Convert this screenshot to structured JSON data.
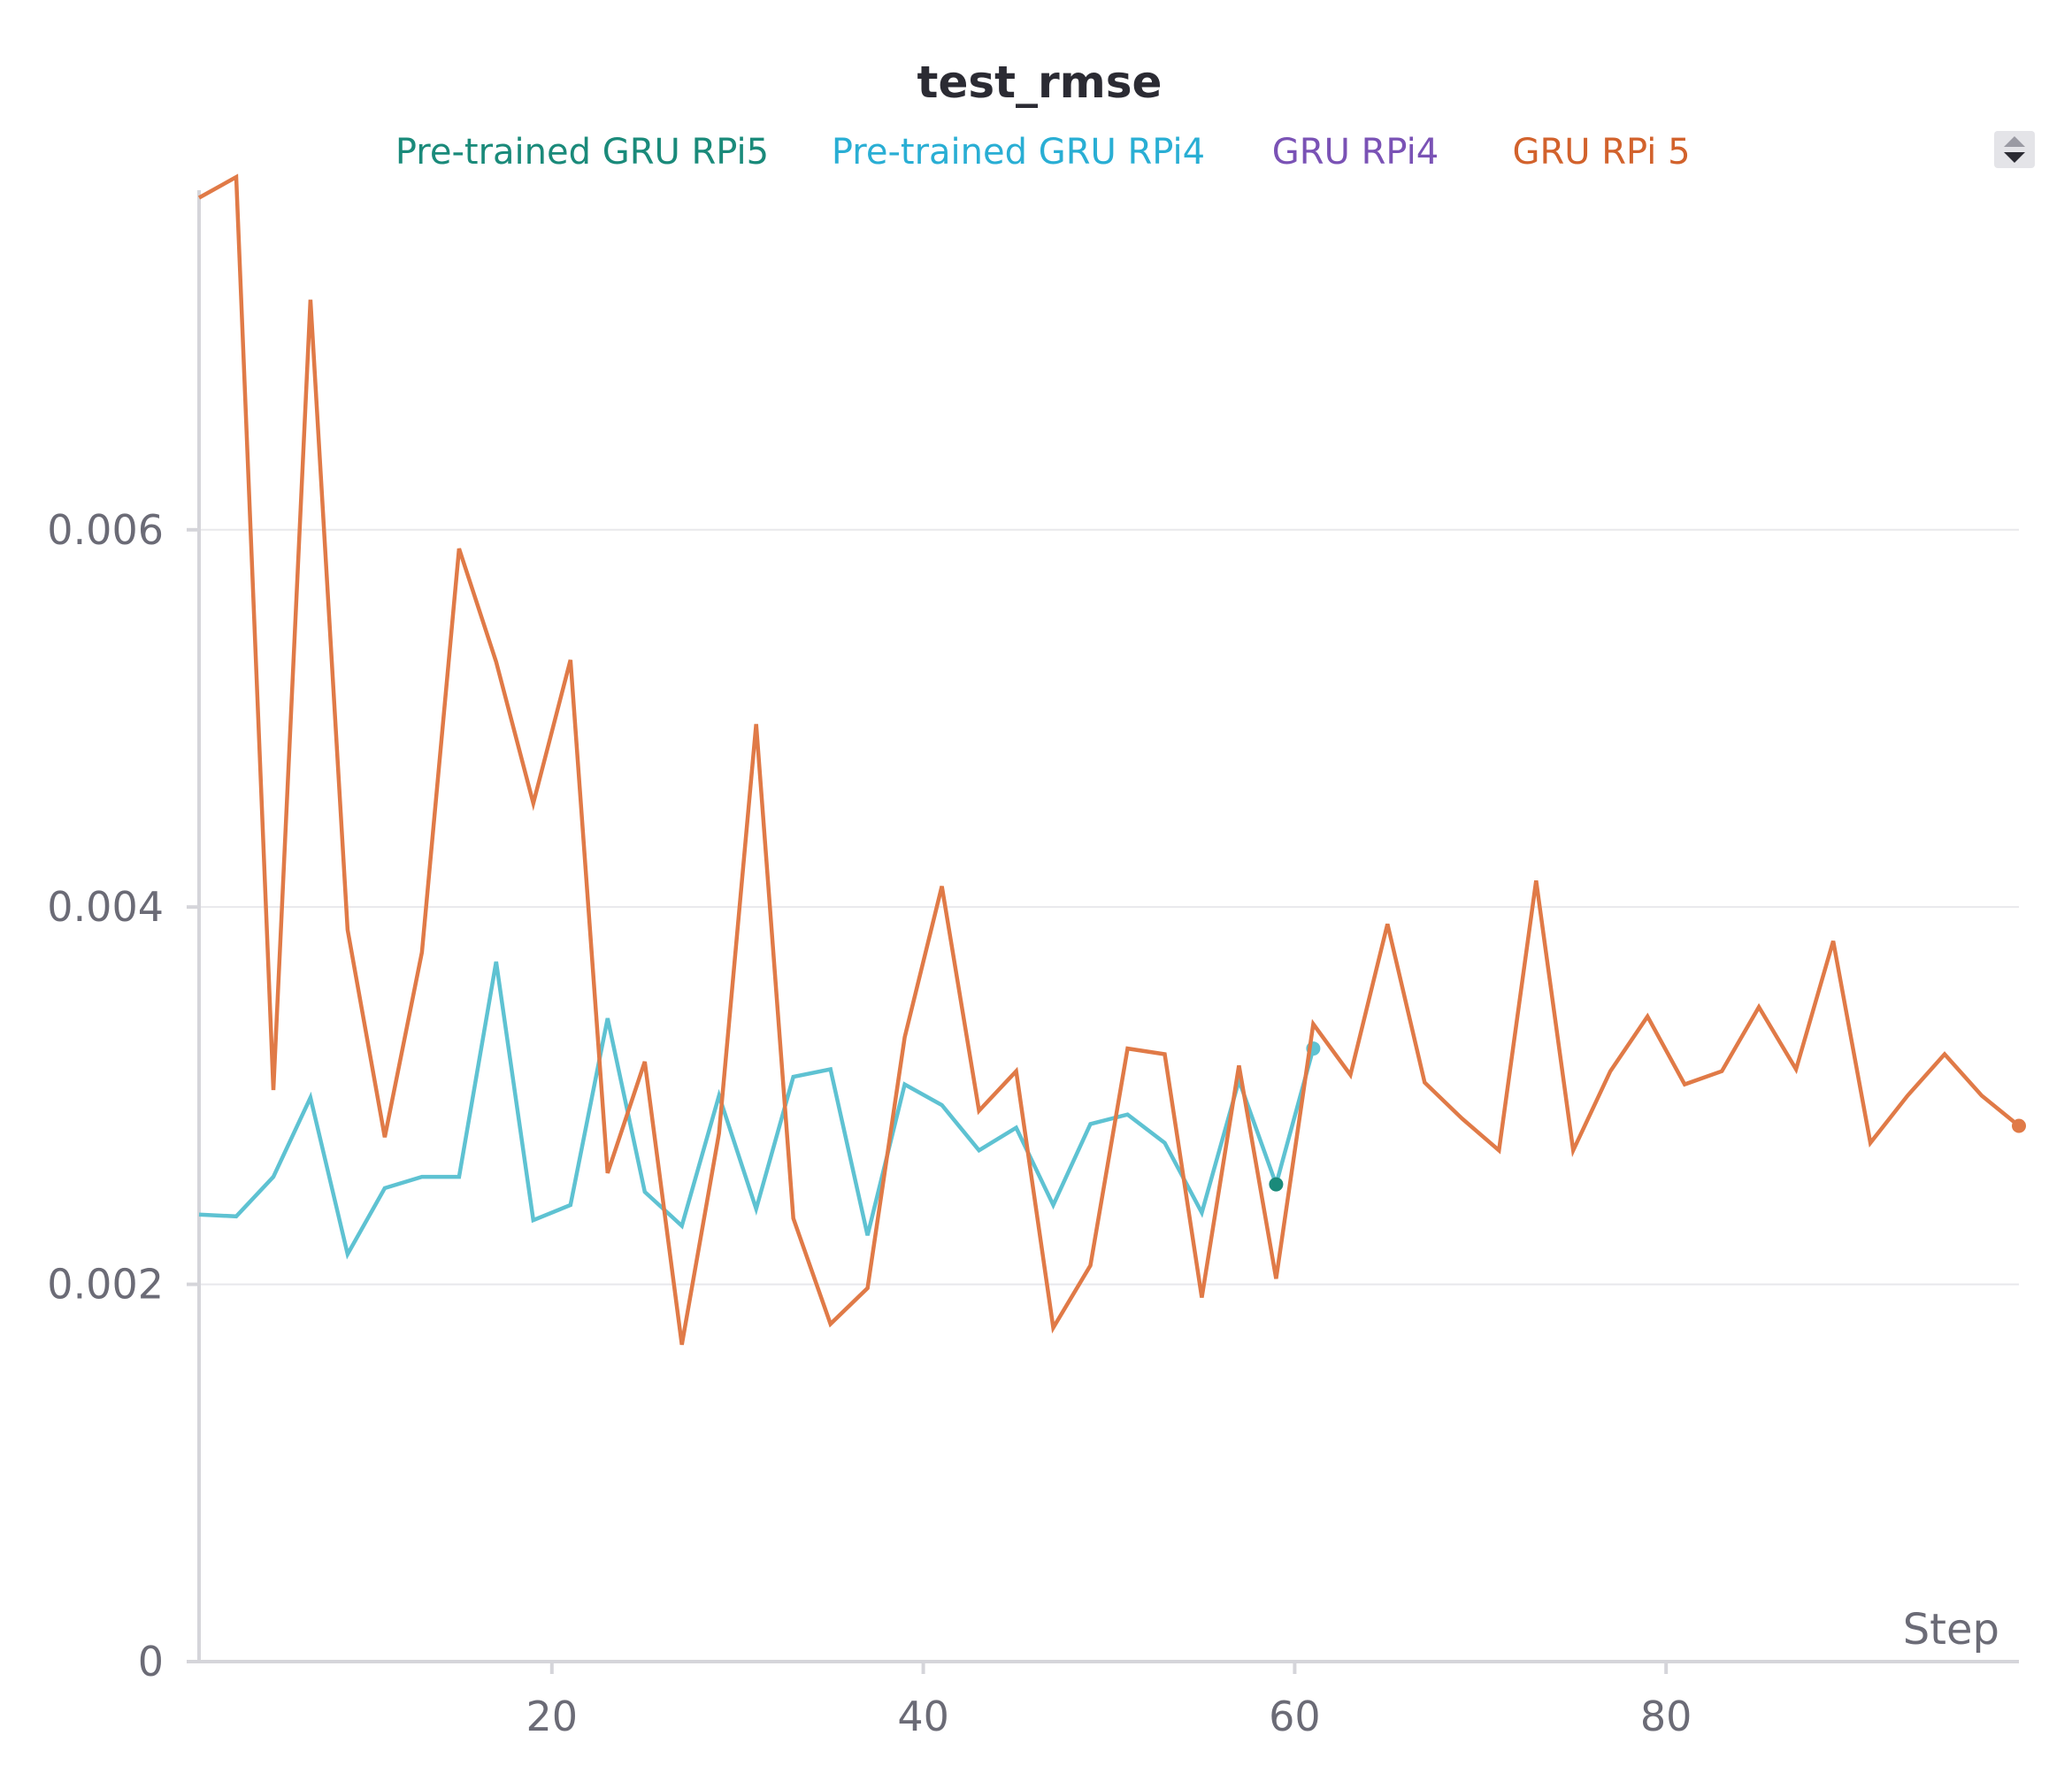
{
  "chart_data": {
    "type": "line",
    "title": "test_rmse",
    "xlabel": "Step",
    "ylabel": "",
    "xlim": [
      1,
      99
    ],
    "ylim": [
      0,
      0.0078
    ],
    "xticks": [
      20,
      40,
      60,
      80
    ],
    "yticks": [
      0,
      0.002,
      0.004,
      0.006
    ],
    "ytick_labels": [
      "0",
      "0.002",
      "0.004",
      "0.006"
    ],
    "grid": true,
    "legend_position": "top",
    "series": [
      {
        "name": "Pre-trained GRU RPi5",
        "color": "#1a8a7a",
        "label_color": "#1a8a7a",
        "x": [
          59
        ],
        "values": [
          0.00253
        ],
        "end_marker": true
      },
      {
        "name": "Pre-trained GRU RPi4",
        "color": "#5ec2d2",
        "label_color": "#29aed4",
        "x": [
          1,
          3,
          5,
          7,
          9,
          11,
          13,
          15,
          17,
          19,
          21,
          23,
          25,
          27,
          29,
          31,
          33,
          35,
          37,
          39,
          41,
          43,
          45,
          47,
          49,
          51,
          53,
          55,
          57,
          59,
          61
        ],
        "values": [
          0.00237,
          0.00236,
          0.00257,
          0.00299,
          0.00216,
          0.00251,
          0.00257,
          0.00257,
          0.00371,
          0.00234,
          0.00242,
          0.00341,
          0.00249,
          0.00231,
          0.003,
          0.0024,
          0.0031,
          0.00314,
          0.00226,
          0.00306,
          0.00295,
          0.00271,
          0.00283,
          0.00242,
          0.00285,
          0.0029,
          0.00275,
          0.00238,
          0.00308,
          0.00253,
          0.00325
        ],
        "end_marker": true
      },
      {
        "name": "GRU RPi4",
        "color": "#7a52b5",
        "label_color": "#7a52b5",
        "x": [],
        "values": []
      },
      {
        "name": "GRU RPi 5",
        "color": "#e07a47",
        "label_color": "#d2622c",
        "x": [
          1,
          3,
          5,
          7,
          9,
          11,
          13,
          15,
          17,
          19,
          21,
          23,
          25,
          27,
          29,
          31,
          33,
          35,
          37,
          39,
          41,
          43,
          45,
          47,
          49,
          51,
          53,
          55,
          57,
          59,
          61,
          63,
          65,
          67,
          69,
          71,
          73,
          75,
          77,
          79,
          81,
          83,
          85,
          87,
          89,
          91,
          93,
          95,
          97,
          99
        ],
        "values": [
          0.00776,
          0.00787,
          0.00303,
          0.00722,
          0.00388,
          0.00278,
          0.00376,
          0.0059,
          0.0053,
          0.00455,
          0.00531,
          0.00259,
          0.00318,
          0.00168,
          0.0028,
          0.00497,
          0.00235,
          0.00179,
          0.00198,
          0.00331,
          0.00411,
          0.00292,
          0.00313,
          0.00177,
          0.0021,
          0.00325,
          0.00322,
          0.00193,
          0.00316,
          0.00203,
          0.00338,
          0.00311,
          0.00391,
          0.00307,
          0.00288,
          0.00271,
          0.00414,
          0.00271,
          0.00313,
          0.00342,
          0.00306,
          0.00313,
          0.00347,
          0.00314,
          0.00382,
          0.00275,
          0.003,
          0.00322,
          0.003,
          0.00284
        ],
        "end_marker": true
      }
    ]
  },
  "controls": {
    "legend_scroll_icon": "up-down-arrows-icon"
  }
}
